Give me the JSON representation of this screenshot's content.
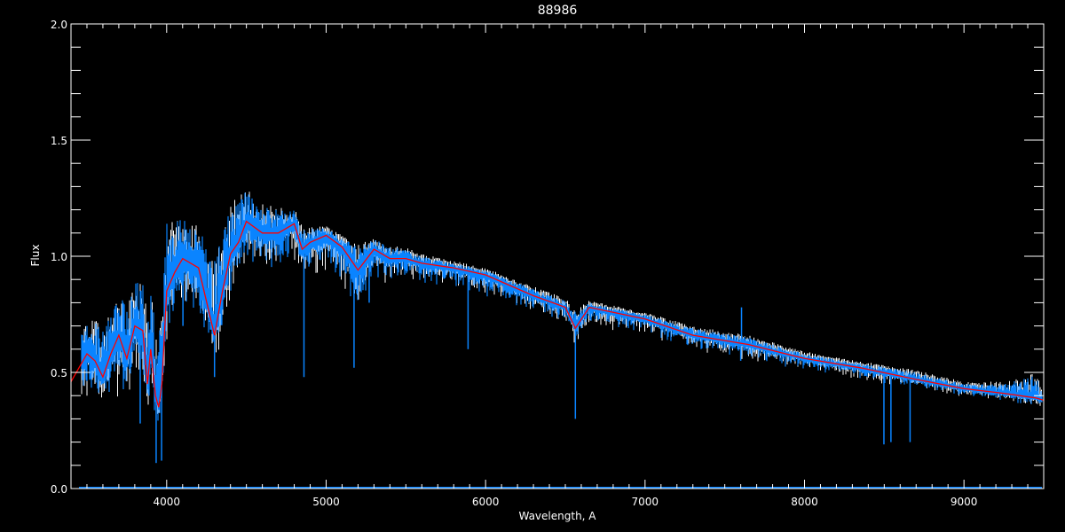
{
  "chart_data": {
    "type": "line",
    "title": "88986",
    "xlabel": "Wavelength, A",
    "ylabel": "Flux",
    "xlim": [
      3400,
      9500
    ],
    "ylim": [
      0,
      2.0
    ],
    "xticks": [
      4000,
      5000,
      6000,
      7000,
      8000,
      9000
    ],
    "xtick_labels": [
      "4000",
      "5000",
      "6000",
      "7000",
      "8000",
      "9000"
    ],
    "yticks": [
      0,
      0.5,
      1.0,
      1.5,
      2.0
    ],
    "ytick_labels": [
      "0.0",
      "0.5",
      "1.0",
      "1.5",
      "2.0"
    ],
    "grid": false,
    "colors": {
      "background": "#000000",
      "axes": "#ffffff",
      "observed": "#0a84ff",
      "model": "#ffffff",
      "smoothed": "#ff0000"
    },
    "wavelength": [
      3400,
      3450,
      3500,
      3550,
      3600,
      3650,
      3700,
      3750,
      3800,
      3850,
      3880,
      3900,
      3930,
      3950,
      3970,
      4000,
      4050,
      4100,
      4200,
      4300,
      4350,
      4400,
      4450,
      4500,
      4600,
      4700,
      4800,
      4850,
      4900,
      5000,
      5100,
      5200,
      5300,
      5400,
      5500,
      5600,
      5800,
      6000,
      6300,
      6500,
      6563,
      6650,
      7000,
      7300,
      7650,
      8000,
      8350,
      8700,
      9000,
      9250,
      9450,
      9500
    ],
    "series": [
      {
        "role": "smoothed",
        "values": [
          0.46,
          0.52,
          0.58,
          0.55,
          0.48,
          0.58,
          0.66,
          0.56,
          0.7,
          0.68,
          0.45,
          0.6,
          0.4,
          0.35,
          0.45,
          0.85,
          0.93,
          0.99,
          0.95,
          0.66,
          0.85,
          1.01,
          1.06,
          1.15,
          1.1,
          1.1,
          1.14,
          1.03,
          1.06,
          1.09,
          1.04,
          0.94,
          1.03,
          0.99,
          0.99,
          0.97,
          0.95,
          0.92,
          0.83,
          0.78,
          0.69,
          0.78,
          0.73,
          0.66,
          0.62,
          0.56,
          0.52,
          0.47,
          0.43,
          0.41,
          0.39,
          0.38
        ]
      },
      {
        "role": "observed-upper",
        "values": [
          0.6,
          0.66,
          0.72,
          0.72,
          0.7,
          0.75,
          0.82,
          0.8,
          0.9,
          0.88,
          0.75,
          0.85,
          0.7,
          0.65,
          0.75,
          1.15,
          1.15,
          1.17,
          1.12,
          1.0,
          1.15,
          1.22,
          1.25,
          1.28,
          1.22,
          1.2,
          1.2,
          1.12,
          1.12,
          1.12,
          1.08,
          1.04,
          1.08,
          1.04,
          1.03,
          1.0,
          0.97,
          0.94,
          0.86,
          0.81,
          0.76,
          0.8,
          0.75,
          0.69,
          0.65,
          0.58,
          0.54,
          0.5,
          0.45,
          0.45,
          0.49,
          0.4
        ]
      },
      {
        "role": "observed-lower",
        "values": [
          0.38,
          0.4,
          0.38,
          0.35,
          0.3,
          0.35,
          0.4,
          0.35,
          0.45,
          0.45,
          0.3,
          0.4,
          0.3,
          0.25,
          0.35,
          0.6,
          0.7,
          0.72,
          0.7,
          0.55,
          0.65,
          0.8,
          0.88,
          0.95,
          0.92,
          0.95,
          0.98,
          0.85,
          0.88,
          0.92,
          0.88,
          0.75,
          0.88,
          0.88,
          0.9,
          0.88,
          0.86,
          0.82,
          0.76,
          0.72,
          0.62,
          0.7,
          0.66,
          0.6,
          0.55,
          0.51,
          0.47,
          0.43,
          0.39,
          0.38,
          0.35,
          0.35
        ]
      }
    ],
    "absorption_lines": [
      [
        3834,
        0.28
      ],
      [
        3889,
        0.4
      ],
      [
        3934,
        0.11
      ],
      [
        3968,
        0.12
      ],
      [
        4102,
        0.7
      ],
      [
        4300,
        0.48
      ],
      [
        4861,
        0.48
      ],
      [
        5175,
        0.52
      ],
      [
        5270,
        0.8
      ],
      [
        5890,
        0.6
      ],
      [
        6563,
        0.3
      ],
      [
        7600,
        0.55
      ],
      [
        8498,
        0.19
      ],
      [
        8542,
        0.2
      ],
      [
        8662,
        0.2
      ]
    ],
    "emission_lines": [
      [
        7605,
        0.78
      ]
    ]
  }
}
